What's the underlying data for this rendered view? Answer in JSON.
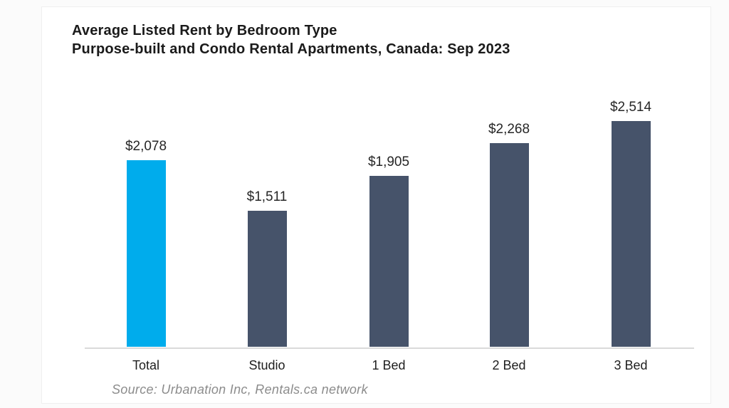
{
  "header": {
    "title_line1": "Average Listed Rent by Bedroom Type",
    "title_line2": "Purpose-built and Condo Rental Apartments, Canada: Sep 2023"
  },
  "source_note": "Source: Urbanation Inc, Rentals.ca network",
  "chart_data": {
    "type": "bar",
    "title": "Average Listed Rent by Bedroom Type",
    "subtitle": "Purpose-built and Condo Rental Apartments, Canada: Sep 2023",
    "categories": [
      "Total",
      "Studio",
      "1 Bed",
      "2 Bed",
      "3 Bed"
    ],
    "values": [
      2078,
      1511,
      1905,
      2268,
      2514
    ],
    "value_labels": [
      "$2,078",
      "$1,511",
      "$1,905",
      "$2,268",
      "$2,514"
    ],
    "bar_colors": [
      "#00ACEC",
      "#46536A",
      "#46536A",
      "#46536A",
      "#46536A"
    ],
    "highlight_color": "#00ACEC",
    "base_color": "#46536A",
    "xlabel": "",
    "ylabel": "",
    "ylim": [
      0,
      2700
    ],
    "grid": false,
    "legend": false,
    "data_labels": true,
    "source": "Source: Urbanation Inc, Rentals.ca network"
  },
  "colors": {
    "axis_line": "#dadada",
    "title_text": "#1a1a1a",
    "value_text": "#262626",
    "source_text": "#8c8c8c",
    "card_background": "#ffffff",
    "page_background": "#fbfbfb"
  }
}
